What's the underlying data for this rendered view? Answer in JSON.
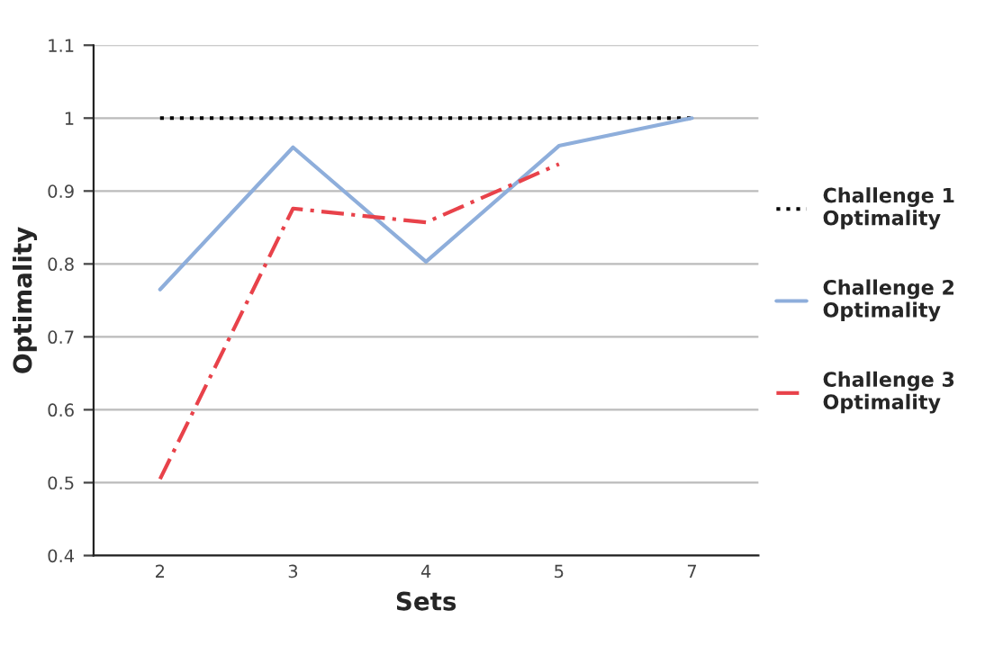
{
  "chart_data": {
    "type": "line",
    "xlabel": "Sets",
    "ylabel": "Optimality",
    "categories": [
      "2",
      "3",
      "4",
      "5",
      "7"
    ],
    "series": [
      {
        "name": "Challenge 1\nOptimality",
        "color": "#000000",
        "line_style": "dotted",
        "values": [
          1,
          1,
          1,
          1,
          1
        ]
      },
      {
        "name": "Challenge 2\nOptimality",
        "color": "#8eaedb",
        "line_style": "solid",
        "values": [
          0.765,
          0.96,
          0.803,
          0.962,
          1.0
        ]
      },
      {
        "name": "Challenge 3\nOptimality",
        "color": "#e8424a",
        "line_style": "dashed",
        "values": [
          0.505,
          0.876,
          0.857,
          0.937,
          null
        ]
      }
    ],
    "ylim": [
      0.4,
      1.1
    ],
    "yticks": [
      0.4,
      0.5,
      0.6,
      0.7,
      0.8,
      0.9,
      1,
      1.1
    ],
    "grid": "y",
    "legend": "right",
    "marker": "none"
  }
}
